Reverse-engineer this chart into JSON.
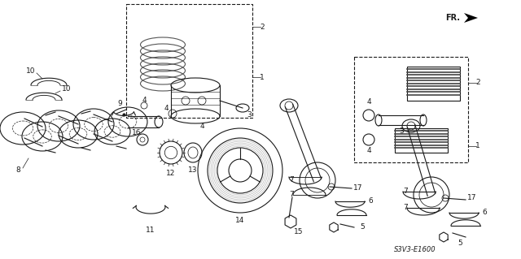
{
  "bg_color": "#ffffff",
  "fig_width": 6.4,
  "fig_height": 3.19,
  "dpi": 100,
  "line_color": "#1a1a1a",
  "label_color": "#1a1a1a",
  "watermark": "S3V3-E1600",
  "fr_label": "FR."
}
